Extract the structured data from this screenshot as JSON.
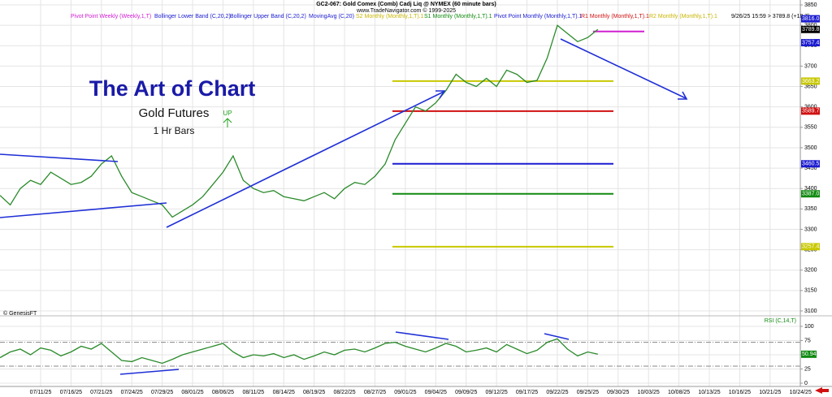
{
  "header": {
    "title": "GC2-067:  Gold Comex (Comb) Cadj Liq @ NYMEX  (60 minute bars)",
    "subtitle": "www.TradeNavigator.com © 1999-2025",
    "last_info": "9/26/25 15:59 > 3789.8 (+18.7)",
    "legend": [
      {
        "text": "Pivot Point Weekly (Weekly,1,T)",
        "color": "#d020d0"
      },
      {
        "text": "Bollinger Lower Band (C,20,2)",
        "color": "#1a1ad0"
      },
      {
        "text": "Bollinger Upper Band (C,20,2)",
        "color": "#1a1ad0"
      },
      {
        "text": "MovingAvg (C,20)",
        "color": "#1a1ad0"
      },
      {
        "text": "S2 Monthly (Monthly,1,T).1",
        "color": "#c8b400"
      },
      {
        "text": "S1 Monthly (Monthly,1,T).1",
        "color": "#108a10"
      },
      {
        "text": "Pivot Point Monthly (Monthly,1,T).1",
        "color": "#1a1ad0"
      },
      {
        "text": "R1 Monthly (Monthly,1,T).1",
        "color": "#d01010"
      },
      {
        "text": "R2 Monthly (Monthly,1,T).1",
        "color": "#c8b400"
      }
    ]
  },
  "annotations": {
    "headline": "The Art of Chart",
    "product": "Gold Futures",
    "bars": "1 Hr Bars",
    "signal": "UP",
    "credit": "© GenesisFT"
  },
  "chart_data": [
    {
      "type": "line",
      "title": "Price",
      "categories": [
        null,
        null,
        null,
        null,
        "07/11/25",
        null,
        null,
        "07/16/25",
        null,
        null,
        "07/21/25",
        null,
        null,
        "07/24/25",
        null,
        null,
        "07/29/25",
        null,
        null,
        "08/01/25",
        null,
        null,
        "08/06/25",
        null,
        null,
        "08/11/25",
        null,
        null,
        "08/14/25",
        null,
        null,
        "08/19/25",
        null,
        null,
        "08/22/25",
        null,
        null,
        "08/27/25",
        null,
        null,
        "09/01/25",
        null,
        null,
        "09/04/25",
        null,
        null,
        "09/09/25",
        null,
        null,
        "09/12/25",
        null,
        null,
        "09/17/25",
        null,
        null,
        "09/22/25",
        null,
        null,
        "09/25/25",
        null,
        null,
        "09/30/25",
        null,
        null,
        "10/03/25",
        null,
        null,
        "10/08/25",
        null,
        null,
        "10/13/25",
        null,
        null,
        "10/16/25",
        null,
        null,
        "10/21/25",
        null,
        null,
        "10/24/25",
        null,
        null
      ],
      "series": [
        {
          "name": "GC2-067",
          "color": "#2a8a2a",
          "values": [
            3383,
            3360,
            3400,
            3420,
            3410,
            3440,
            3425,
            3410,
            3415,
            3430,
            3460,
            3480,
            3430,
            3390,
            3380,
            3370,
            3360,
            3330,
            3345,
            3360,
            3380,
            3410,
            3440,
            3480,
            3420,
            3400,
            3390,
            3395,
            3380,
            3375,
            3370,
            3380,
            3390,
            3375,
            3400,
            3415,
            3410,
            3430,
            3460,
            3520,
            3560,
            3600,
            3590,
            3610,
            3640,
            3680,
            3660,
            3650,
            3670,
            3650,
            3690,
            3680,
            3660,
            3665,
            3720,
            3800,
            3780,
            3760,
            3770,
            3790,
            null,
            null,
            null,
            null,
            null,
            null,
            null,
            null,
            null,
            null,
            null,
            null,
            null,
            null,
            null,
            null,
            null,
            null,
            null,
            null,
            null,
            null
          ]
        }
      ],
      "levels": [
        {
          "value": 3663.2,
          "label": "3663.2",
          "color": "#c8c800"
        },
        {
          "value": 3589.7,
          "label": "3589.7",
          "color": "#d01010"
        },
        {
          "value": 3460.5,
          "label": "3460.5",
          "color": "#1a1ad0"
        },
        {
          "value": 3387,
          "label": "3387.0",
          "color": "#108a10"
        },
        {
          "value": 3257.4,
          "label": "3257.4",
          "color": "#c8c800"
        }
      ],
      "weekly_pivot": {
        "value": 3785,
        "color": "#d020d0"
      },
      "markers": [
        {
          "value": 3816,
          "label": "3816.0",
          "color": "#1a1ad0"
        },
        {
          "value": 3789.8,
          "label": "3789.8",
          "color": "#000000"
        },
        {
          "value": 3757.4,
          "label": "3757.4",
          "color": "#1a1ad0"
        }
      ],
      "ylim": [
        3090,
        3862
      ],
      "yticks": [
        3100,
        3150,
        3200,
        3250,
        3300,
        3350,
        3400,
        3450,
        3500,
        3550,
        3600,
        3650,
        3700,
        3750,
        3800,
        3850
      ],
      "grid": true
    },
    {
      "type": "line",
      "title": "RSI (C,14,T)",
      "series": [
        {
          "name": "RSI",
          "color": "#2a8a2a",
          "values": [
            45,
            55,
            60,
            50,
            62,
            58,
            48,
            55,
            65,
            60,
            70,
            55,
            40,
            38,
            45,
            40,
            35,
            42,
            50,
            55,
            60,
            65,
            70,
            55,
            45,
            50,
            48,
            52,
            45,
            50,
            42,
            48,
            55,
            50,
            58,
            60,
            55,
            62,
            70,
            72,
            65,
            60,
            55,
            62,
            70,
            65,
            55,
            58,
            62,
            55,
            68,
            60,
            52,
            58,
            72,
            78,
            60,
            48,
            55,
            50.94
          ]
        }
      ],
      "reference_lines": [
        72,
        30
      ],
      "ylim": [
        -5,
        105
      ],
      "yticks": [
        0,
        25,
        50,
        75,
        100
      ],
      "grid": true
    }
  ]
}
